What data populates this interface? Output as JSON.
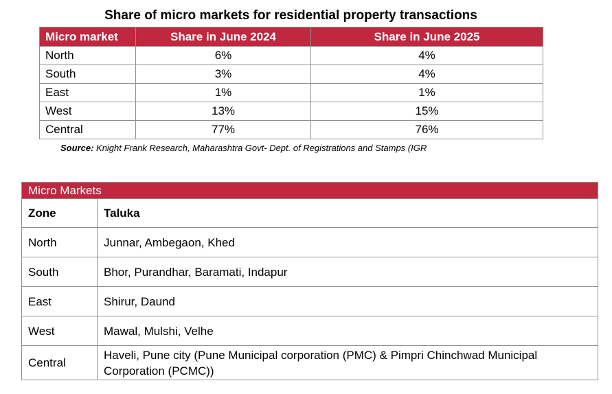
{
  "title": "Share of micro markets for residential property transactions",
  "share_table": {
    "headers": [
      "Micro market",
      "Share in June 2024",
      "Share in June 2025"
    ],
    "rows": [
      [
        "North",
        "6%",
        "4%"
      ],
      [
        "South",
        "3%",
        "4%"
      ],
      [
        "East",
        "1%",
        "1%"
      ],
      [
        "West",
        "13%",
        "15%"
      ],
      [
        "Central",
        "77%",
        "76%"
      ]
    ]
  },
  "source": {
    "label": "Source:",
    "text": " Knight Frank Research, Maharashtra Govt- Dept. of Registrations and Stamps (IGR"
  },
  "micro_markets": {
    "banner": "Micro Markets",
    "headers": [
      "Zone",
      "Taluka"
    ],
    "rows": [
      [
        "North",
        "Junnar, Ambegaon, Khed"
      ],
      [
        "South",
        "Bhor, Purandhar, Baramati, Indapur"
      ],
      [
        "East",
        "Shirur, Daund"
      ],
      [
        "West",
        "Mawal, Mulshi, Velhe"
      ],
      [
        "Central",
        "Haveli, Pune city (Pune Municipal corporation (PMC) & Pimpri Chinchwad Municipal Corporation (PCMC))"
      ]
    ]
  },
  "colors": {
    "header_bg": "#c0283f",
    "header_text": "#ffffff",
    "border": "#8f8f8f"
  }
}
